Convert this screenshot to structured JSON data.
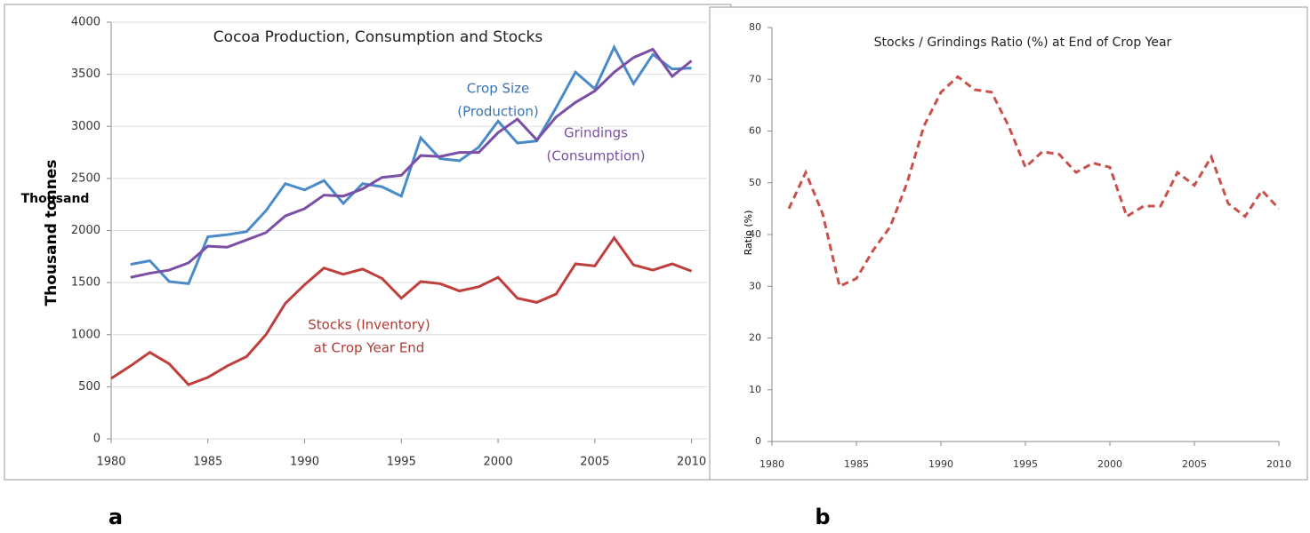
{
  "chart_data": [
    {
      "type": "line",
      "title": "Cocoa Production, Consumption and Stocks",
      "ylabel": "Thousand   tonnes",
      "ylabel_overlay": "Thousand",
      "x": [
        1980,
        1981,
        1982,
        1983,
        1984,
        1985,
        1986,
        1987,
        1988,
        1989,
        1990,
        1991,
        1992,
        1993,
        1994,
        1995,
        1996,
        1997,
        1998,
        1999,
        2000,
        2001,
        2002,
        2003,
        2004,
        2005,
        2006,
        2007,
        2008,
        2009,
        2010
      ],
      "series": [
        {
          "color": "#4a8ac9",
          "values": [
            null,
            1675,
            1710,
            1510,
            1490,
            1940,
            1960,
            1990,
            2190,
            2450,
            2390,
            2480,
            2260,
            2450,
            2420,
            2330,
            2890,
            2690,
            2670,
            2800,
            3050,
            2840,
            2860,
            3180,
            3520,
            3360,
            3760,
            3410,
            3690,
            3550,
            3560
          ]
        },
        {
          "color": "#7b4fa6",
          "values": [
            null,
            1550,
            1590,
            1620,
            1690,
            1850,
            1840,
            1910,
            1980,
            2140,
            2210,
            2340,
            2330,
            2400,
            2510,
            2530,
            2720,
            2710,
            2750,
            2750,
            2940,
            3070,
            2870,
            3090,
            3230,
            3340,
            3520,
            3660,
            3740,
            3480,
            3630
          ]
        },
        {
          "color": "#be3f3c",
          "values": [
            580,
            700,
            830,
            720,
            520,
            590,
            700,
            790,
            1000,
            1300,
            1480,
            1640,
            1580,
            1630,
            1540,
            1350,
            1510,
            1490,
            1420,
            1460,
            1550,
            1350,
            1310,
            1390,
            1680,
            1660,
            1930,
            1670,
            1620,
            1680,
            1610
          ]
        }
      ],
      "annotations": [
        {
          "lines": [
            "Crop Size",
            "(Production)"
          ],
          "color": "#3b74b0"
        },
        {
          "lines": [
            "Grindings",
            "(Consumption)"
          ],
          "color": "#7b4fa6"
        },
        {
          "lines": [
            "Stocks (Inventory)",
            "at Crop Year End"
          ],
          "color": "#b03a36"
        }
      ],
      "xlim": [
        1980,
        2010.8
      ],
      "xticks": [
        1980,
        1985,
        1990,
        1995,
        2000,
        2005,
        2010
      ],
      "ylim": [
        0,
        4000
      ],
      "yticks": [
        0,
        500,
        1000,
        1500,
        2000,
        2500,
        3000,
        3500,
        4000
      ],
      "grid": true,
      "panel_label": "a"
    },
    {
      "type": "line",
      "title": "Stocks / Grindings Ratio (%) at End of Crop Year",
      "ylabel": "Ratio (%)",
      "x": [
        1981,
        1982,
        1983,
        1984,
        1985,
        1986,
        1987,
        1988,
        1989,
        1990,
        1991,
        1992,
        1993,
        1994,
        1995,
        1996,
        1997,
        1998,
        1999,
        2000,
        2001,
        2002,
        2003,
        2004,
        2005,
        2006,
        2007,
        2008,
        2009,
        2010
      ],
      "series": [
        {
          "color": "#c9504b",
          "dash": true,
          "values": [
            45,
            52,
            44,
            30,
            31.5,
            37,
            41.5,
            50,
            61,
            67.5,
            70.5,
            68,
            67.5,
            61,
            53,
            56,
            55.5,
            52,
            53.8,
            53,
            43.5,
            45.5,
            45.5,
            52,
            49.5,
            55,
            46,
            43.5,
            48.5,
            45
          ]
        }
      ],
      "xlim": [
        1980,
        2010
      ],
      "xticks": [
        1980,
        1985,
        1990,
        1995,
        2000,
        2005,
        2010
      ],
      "ylim": [
        0,
        80
      ],
      "yticks": [
        0,
        10,
        20,
        30,
        40,
        50,
        60,
        70,
        80
      ],
      "grid": false,
      "panel_label": "b"
    }
  ]
}
